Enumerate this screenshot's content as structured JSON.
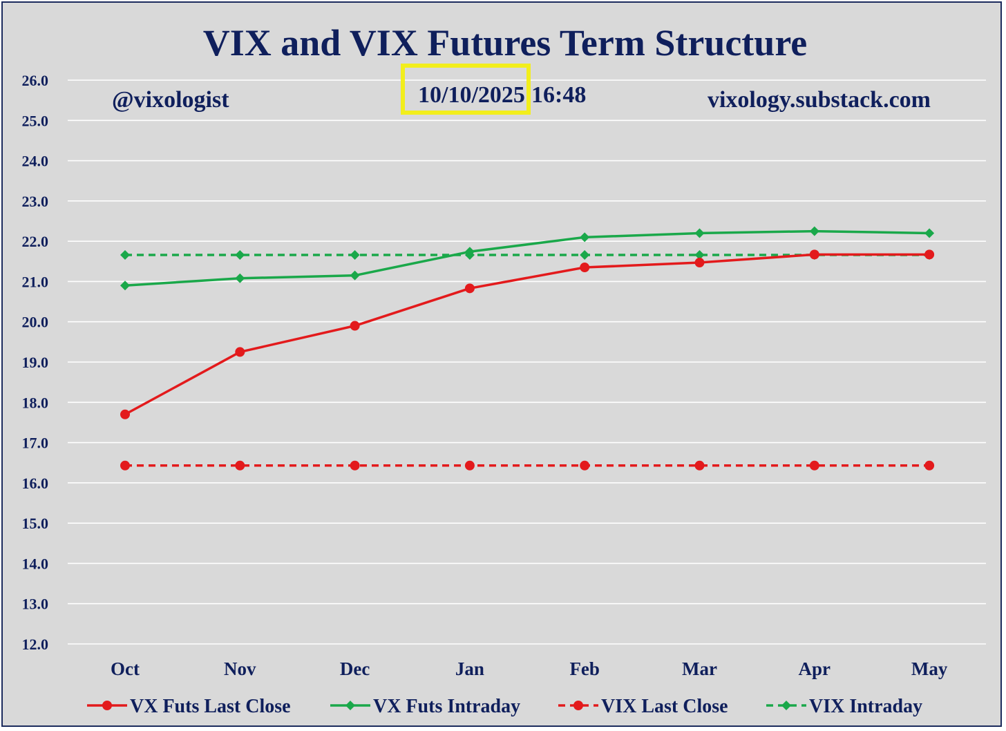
{
  "chart_data": {
    "type": "line",
    "title": "VIX and VIX Futures Term Structure",
    "annotations": {
      "handle": "@vixologist",
      "date": "10/10/2025",
      "time": "16:48",
      "website": "vixology.substack.com"
    },
    "categories": [
      "Oct",
      "Nov",
      "Dec",
      "Jan",
      "Feb",
      "Mar",
      "Apr",
      "May"
    ],
    "ylim": [
      12.0,
      26.0
    ],
    "yticks": [
      "26.0",
      "25.0",
      "24.0",
      "23.0",
      "22.0",
      "21.0",
      "20.0",
      "19.0",
      "18.0",
      "17.0",
      "16.0",
      "15.0",
      "14.0",
      "13.0",
      "12.0"
    ],
    "grid": true,
    "legend_position": "bottom",
    "series": [
      {
        "name": "VX Futs Last Close",
        "values": [
          17.7,
          19.25,
          19.9,
          20.83,
          21.35,
          21.47,
          21.67,
          21.67
        ],
        "color": "#e31a1c",
        "marker": "circle",
        "dashed": false
      },
      {
        "name": "VX Futs Intraday",
        "values": [
          20.9,
          21.08,
          21.15,
          21.74,
          22.1,
          22.2,
          22.25,
          22.2
        ],
        "color": "#1aa84a",
        "marker": "diamond",
        "dashed": false
      },
      {
        "name": "VIX Last Close",
        "values": [
          16.43,
          16.43,
          16.43,
          16.43,
          16.43,
          16.43,
          16.43,
          16.43
        ],
        "color": "#e31a1c",
        "marker": "circle",
        "dashed": true
      },
      {
        "name": "VIX Intraday",
        "values": [
          21.66,
          21.66,
          21.66,
          21.66,
          21.66,
          21.66,
          21.66,
          21.66
        ],
        "color": "#1aa84a",
        "marker": "diamond",
        "dashed": true
      }
    ],
    "highlight": {
      "target": "date",
      "color": "#f2ee1c"
    }
  }
}
